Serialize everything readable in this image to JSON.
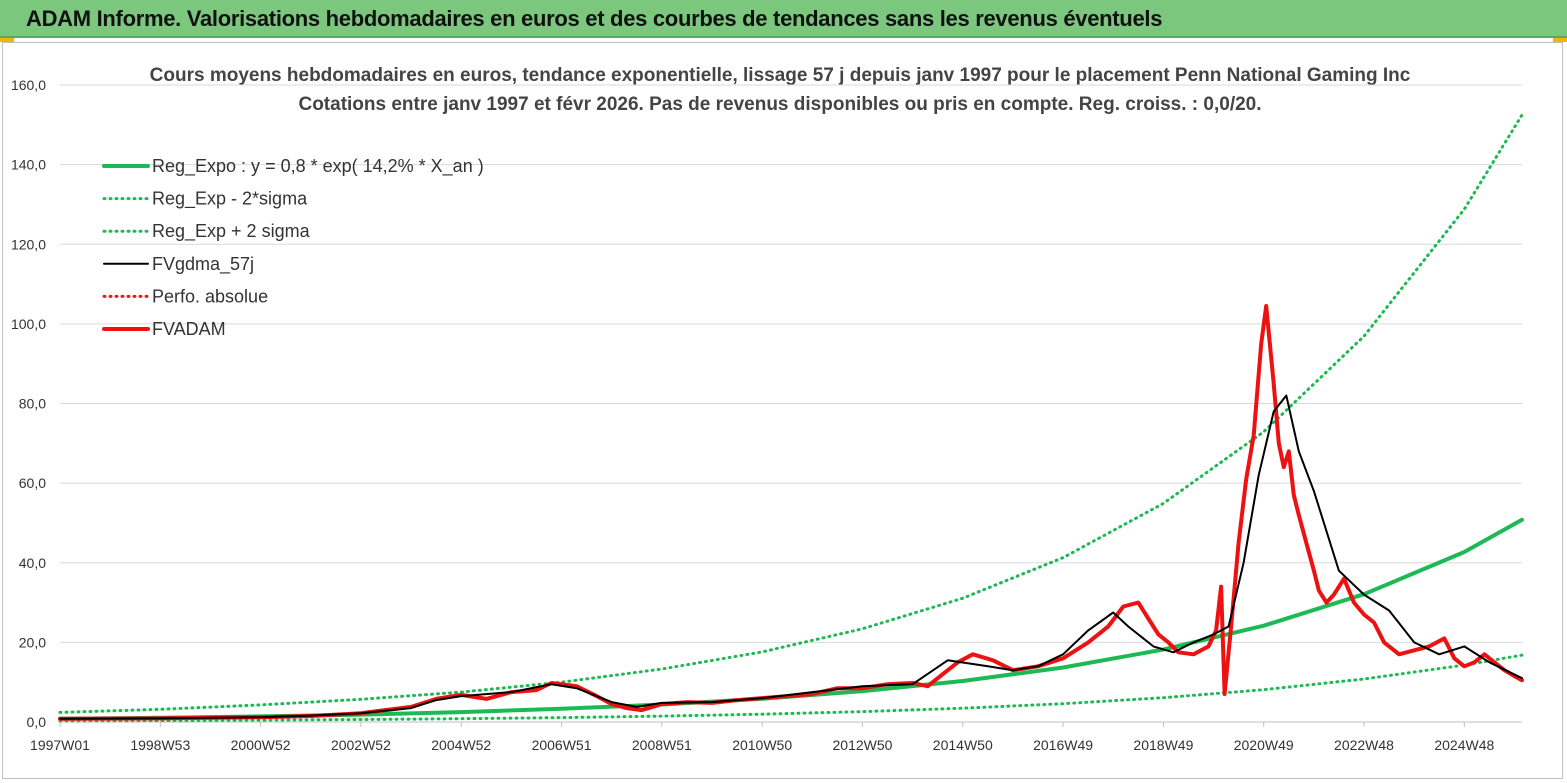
{
  "header": {
    "title": "ADAM Informe. Valorisations hebdomadaires en euros et des courbes de tendances sans les revenus éventuels"
  },
  "chart_data": {
    "type": "line",
    "title_line1": "Cours moyens hebdomadaires en euros, tendance exponentielle, lissage 57 j depuis janv 1997  pour le placement Penn National Gaming Inc",
    "title_line2": "Cotations entre janv 1997 et févr 2026. Pas de revenus disponibles ou pris en  compte. Reg. croiss. : 0,0/20.",
    "x_range": [
      1997.0,
      2026.15
    ],
    "ylim": [
      0,
      160
    ],
    "y_ticks": [
      {
        "value": 0,
        "label": "0,0"
      },
      {
        "value": 20,
        "label": "20,0"
      },
      {
        "value": 40,
        "label": "40,0"
      },
      {
        "value": 60,
        "label": "60,0"
      },
      {
        "value": 80,
        "label": "80,0"
      },
      {
        "value": 100,
        "label": "100,0"
      },
      {
        "value": 120,
        "label": "120,0"
      },
      {
        "value": 140,
        "label": "140,0"
      },
      {
        "value": 160,
        "label": "160,0"
      }
    ],
    "x_ticks": [
      {
        "value": 1997.0,
        "label": "1997W01"
      },
      {
        "value": 1999.0,
        "label": "1998W53"
      },
      {
        "value": 2001.0,
        "label": "2000W52"
      },
      {
        "value": 2003.0,
        "label": "2002W52"
      },
      {
        "value": 2005.0,
        "label": "2004W52"
      },
      {
        "value": 2007.0,
        "label": "2006W51"
      },
      {
        "value": 2009.0,
        "label": "2008W51"
      },
      {
        "value": 2011.0,
        "label": "2010W50"
      },
      {
        "value": 2013.0,
        "label": "2012W50"
      },
      {
        "value": 2015.0,
        "label": "2014W50"
      },
      {
        "value": 2017.0,
        "label": "2016W49"
      },
      {
        "value": 2019.0,
        "label": "2018W49"
      },
      {
        "value": 2021.0,
        "label": "2020W49"
      },
      {
        "value": 2023.0,
        "label": "2022W48"
      },
      {
        "value": 2025.0,
        "label": "2024W48"
      }
    ],
    "grid": "horizontal",
    "legend_position": "top-left",
    "series": [
      {
        "name": "Reg_Expo : y = 0,8 * exp( 14,2% *  X_an )",
        "color": "#1db954",
        "style": "solid-thick",
        "x": [
          1997,
          1999,
          2001,
          2003,
          2005,
          2007,
          2009,
          2011,
          2013,
          2015,
          2017,
          2019,
          2021,
          2023,
          2025,
          2026.15
        ],
        "y": [
          0.8,
          1.06,
          1.41,
          1.87,
          2.49,
          3.31,
          4.4,
          5.84,
          7.76,
          10.3,
          13.7,
          18.2,
          24.2,
          32.1,
          42.7,
          50.8
        ]
      },
      {
        "name": "Reg_Exp - 2*sigma",
        "color": "#1db954",
        "style": "dotted",
        "x": [
          1997,
          1999,
          2001,
          2003,
          2005,
          2007,
          2009,
          2011,
          2013,
          2015,
          2017,
          2019,
          2021,
          2023,
          2025,
          2026.15
        ],
        "y": [
          0.27,
          0.36,
          0.47,
          0.63,
          0.83,
          1.11,
          1.47,
          1.96,
          2.6,
          3.46,
          4.59,
          6.1,
          8.11,
          10.8,
          14.3,
          16.8
        ]
      },
      {
        "name": "Reg_Exp + 2 sigma",
        "color": "#1db954",
        "style": "dotted",
        "x": [
          1997,
          1999,
          2001,
          2003,
          2005,
          2007,
          2009,
          2011,
          2013,
          2015,
          2017,
          2019,
          2021,
          2023,
          2025,
          2026.15
        ],
        "y": [
          2.4,
          3.2,
          4.3,
          5.7,
          7.5,
          10.0,
          13.3,
          17.6,
          23.4,
          31.1,
          41.3,
          54.9,
          72.9,
          96.9,
          128.8,
          152.5
        ]
      },
      {
        "name": "FVgdma_57j",
        "color": "#000000",
        "style": "solid",
        "x": [
          1997,
          1999,
          2001,
          2002,
          2003,
          2004,
          2004.5,
          2005,
          2006,
          2006.8,
          2007.3,
          2008,
          2008.5,
          2009,
          2010,
          2011,
          2012,
          2013,
          2014,
          2014.7,
          2015.5,
          2016,
          2016.5,
          2017,
          2017.5,
          2018,
          2018.3,
          2018.8,
          2019.2,
          2019.6,
          2020.0,
          2020.3,
          2020.6,
          2020.9,
          2021.2,
          2021.45,
          2021.7,
          2022.0,
          2022.5,
          2023.0,
          2023.5,
          2024.0,
          2024.5,
          2025.0,
          2025.5,
          2026.15
        ],
        "y": [
          0.8,
          0.9,
          1.2,
          1.6,
          2.2,
          3.5,
          5.5,
          6.5,
          7.5,
          9.5,
          8.5,
          5.0,
          3.8,
          4.8,
          5.0,
          6.0,
          7.5,
          9.0,
          9.5,
          15.5,
          14.0,
          13.0,
          14.0,
          17.0,
          23.0,
          27.5,
          24.0,
          19.0,
          17.5,
          20.0,
          22.0,
          24.0,
          40.0,
          62.0,
          78.0,
          82.0,
          68.0,
          58.0,
          38.0,
          32.0,
          28.0,
          20.0,
          17.0,
          19.0,
          15.0,
          11.0
        ]
      },
      {
        "name": "Perfo. absolue",
        "color": "#e02020",
        "style": "dotted",
        "x": [],
        "y": []
      },
      {
        "name": "FVADAM",
        "color": "#ee1111",
        "style": "solid-thick",
        "x": [
          1997,
          1999,
          2001,
          2002,
          2003,
          2004,
          2004.5,
          2005,
          2005.5,
          2006,
          2006.5,
          2006.8,
          2007.3,
          2007.7,
          2008,
          2008.3,
          2008.6,
          2009,
          2009.5,
          2010,
          2010.5,
          2011,
          2011.5,
          2012,
          2012.5,
          2013,
          2013.5,
          2014,
          2014.3,
          2014.6,
          2014.9,
          2015.2,
          2015.6,
          2016,
          2016.5,
          2017,
          2017.5,
          2017.9,
          2018.2,
          2018.5,
          2018.7,
          2018.9,
          2019.1,
          2019.3,
          2019.6,
          2019.9,
          2020.05,
          2020.15,
          2020.22,
          2020.35,
          2020.5,
          2020.65,
          2020.8,
          2020.95,
          2021.05,
          2021.2,
          2021.3,
          2021.4,
          2021.5,
          2021.6,
          2021.7,
          2021.85,
          2022.0,
          2022.1,
          2022.25,
          2022.4,
          2022.6,
          2022.8,
          2023.0,
          2023.2,
          2023.4,
          2023.7,
          2024.0,
          2024.3,
          2024.6,
          2024.8,
          2025.0,
          2025.2,
          2025.4,
          2025.6,
          2025.8,
          2026.0,
          2026.15
        ],
        "y": [
          0.8,
          0.9,
          1.2,
          1.5,
          2.2,
          3.8,
          5.8,
          6.8,
          5.8,
          7.5,
          8.0,
          9.8,
          9.0,
          6.5,
          4.5,
          3.5,
          3.0,
          4.5,
          5.0,
          4.8,
          5.5,
          6.0,
          6.5,
          7.0,
          8.5,
          8.5,
          9.5,
          9.8,
          9.0,
          12.0,
          15.0,
          17.0,
          15.5,
          13.0,
          14.0,
          16.0,
          20.0,
          24.0,
          29.0,
          30.0,
          26.0,
          22.0,
          20.0,
          17.5,
          17.0,
          19.0,
          23.0,
          34.0,
          7.0,
          24.0,
          45.0,
          61.0,
          72.0,
          95.0,
          104.5,
          85.0,
          70.0,
          64.0,
          68.0,
          57.0,
          52.0,
          45.0,
          38.0,
          33.0,
          30.0,
          32.0,
          36.0,
          30.0,
          27.0,
          25.0,
          20.0,
          17.0,
          18.0,
          19.0,
          21.0,
          16.0,
          14.0,
          15.0,
          17.0,
          15.0,
          13.0,
          11.5,
          10.5
        ]
      }
    ]
  }
}
